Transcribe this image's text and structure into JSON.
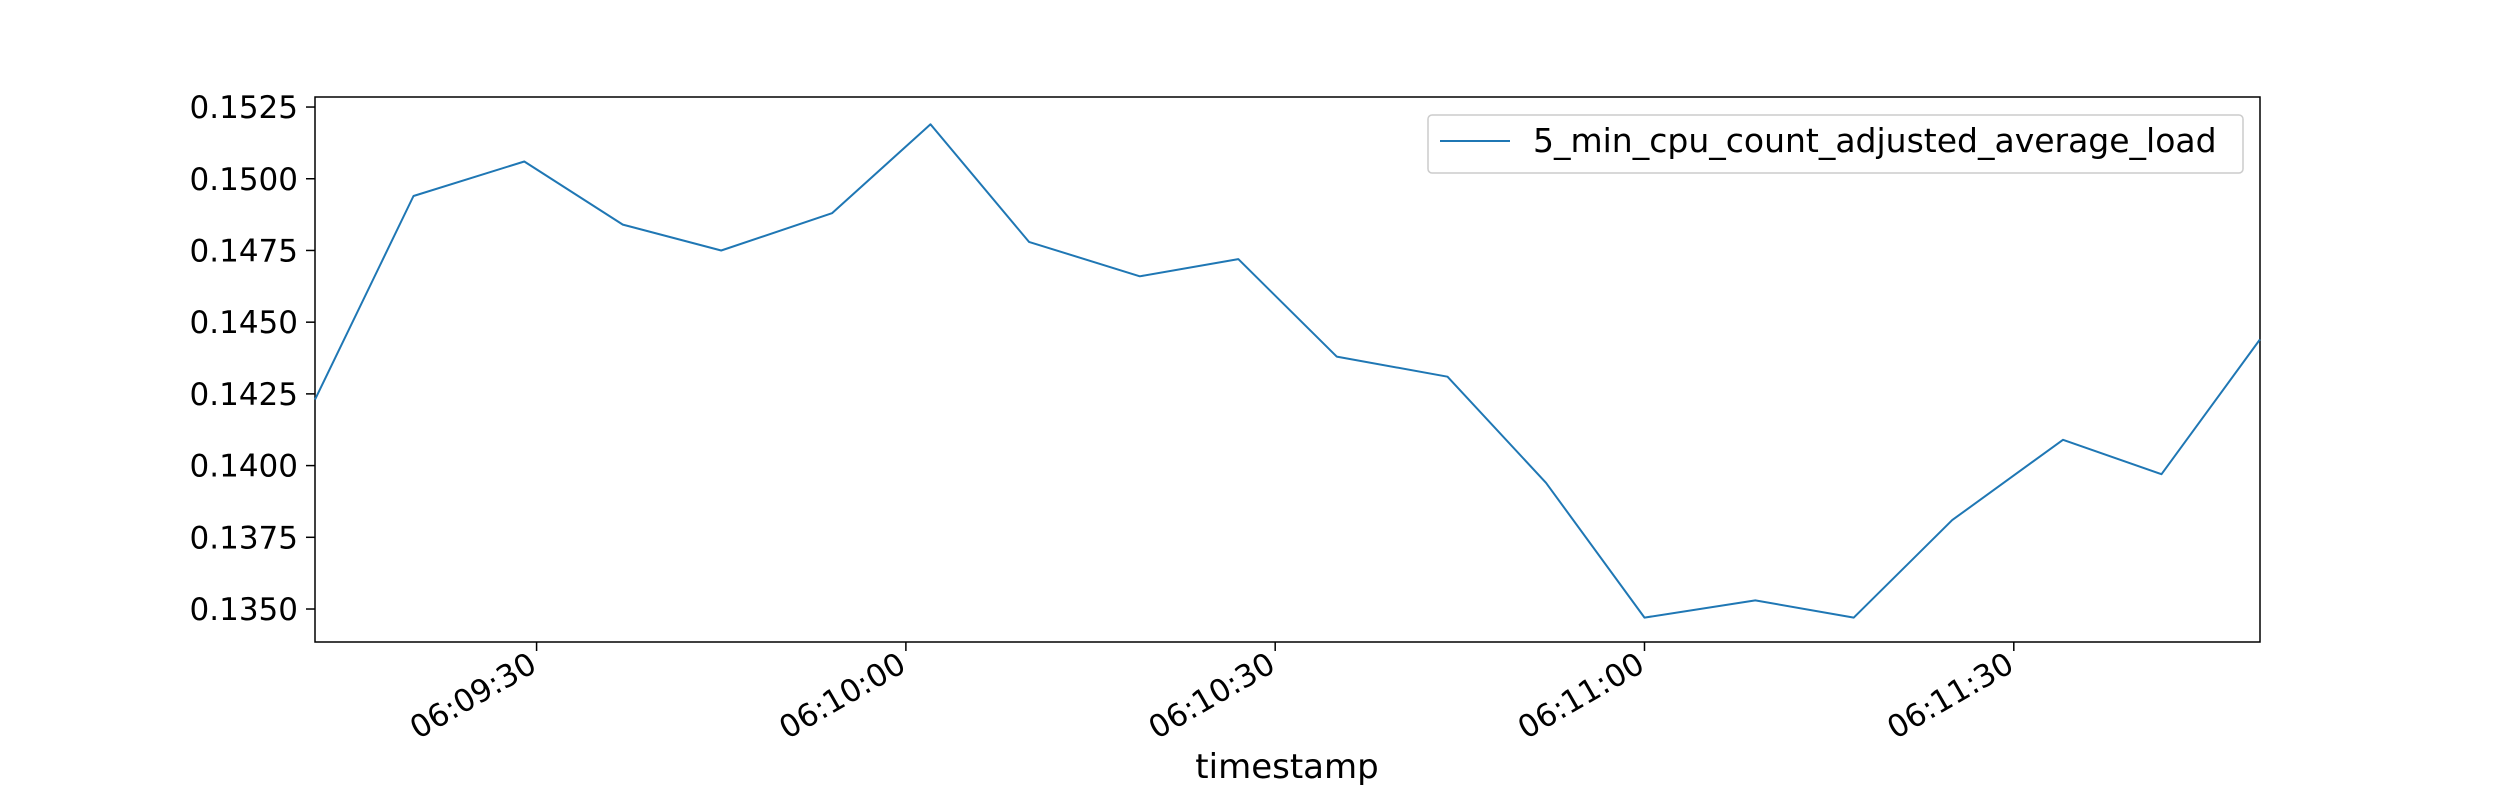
{
  "chart_data": {
    "type": "line",
    "xlabel": "timestamp",
    "ylabel": "",
    "title": "",
    "legend_position": "top-right",
    "grid": false,
    "xlim": [
      "06:09:12",
      "06:11:50"
    ],
    "ylim": [
      0.13385,
      0.15285
    ],
    "x_ticks": [
      "06:09:30",
      "06:10:00",
      "06:10:30",
      "06:11:00",
      "06:11:30"
    ],
    "y_ticks": [
      "0.1350",
      "0.1375",
      "0.1400",
      "0.1425",
      "0.1450",
      "0.1475",
      "0.1500",
      "0.1525"
    ],
    "series": [
      {
        "name": "5_min_cpu_count_adjusted_average_load",
        "color": "#1f77b4",
        "x": [
          "06:09:12",
          "06:09:20",
          "06:09:29",
          "06:09:37",
          "06:09:45",
          "06:09:54",
          "06:10:02",
          "06:10:10",
          "06:10:19",
          "06:10:27",
          "06:10:35",
          "06:10:44",
          "06:10:52",
          "06:11:00",
          "06:11:09",
          "06:11:17",
          "06:11:25",
          "06:11:34",
          "06:11:42",
          "06:11:50"
        ],
        "y": [
          0.1423,
          0.1494,
          0.1506,
          0.1484,
          0.1475,
          0.1488,
          0.1519,
          0.1478,
          0.1466,
          0.1472,
          0.1438,
          0.1431,
          0.1394,
          0.1347,
          0.1353,
          0.1347,
          0.1381,
          0.1409,
          0.1397,
          0.1444
        ]
      }
    ]
  }
}
